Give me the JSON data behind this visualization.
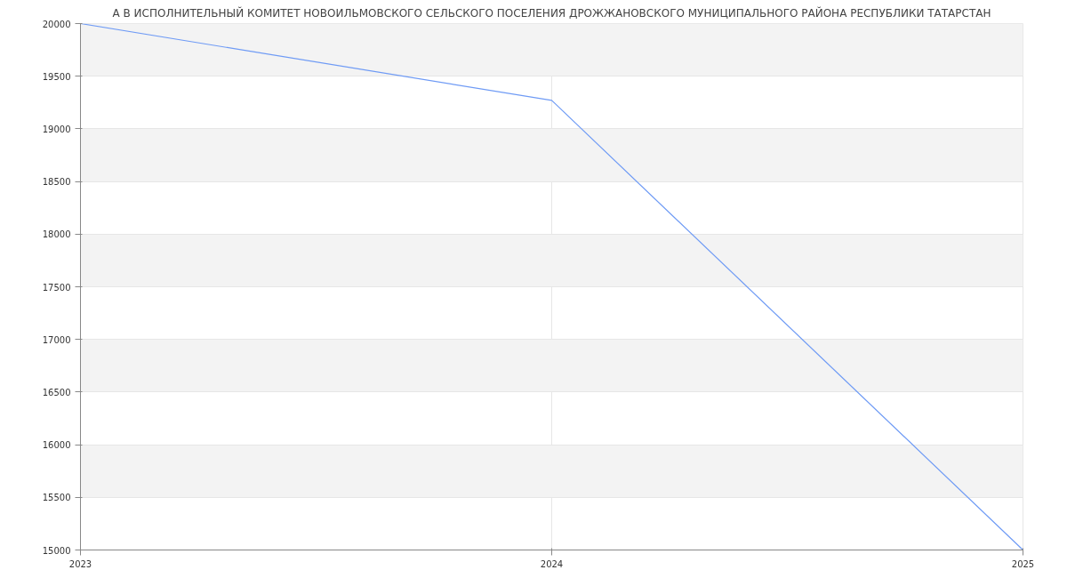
{
  "chart_data": {
    "type": "line",
    "title": "А В ИСПОЛНИТЕЛЬНЫЙ КОМИТЕТ НОВОИЛЬМОВСКОГО СЕЛЬСКОГО ПОСЕЛЕНИЯ ДРОЖЖАНОВСКОГО МУНИЦИПАЛЬНОГО РАЙОНА РЕСПУБЛИКИ ТАТАРСТАН",
    "x": [
      2023,
      2024,
      2025
    ],
    "series": [
      {
        "color": "#6f9bf5",
        "values": [
          20000,
          19270,
          15000
        ]
      }
    ],
    "xlim": [
      2023,
      2025
    ],
    "xticks": [
      2023,
      2024,
      2025
    ],
    "ylim": [
      15000,
      20000
    ],
    "yticks": [
      15000,
      15500,
      16000,
      16500,
      17000,
      17500,
      18000,
      18500,
      19000,
      19500,
      20000
    ],
    "grid": true,
    "marker": "none",
    "line_style": "solid"
  }
}
